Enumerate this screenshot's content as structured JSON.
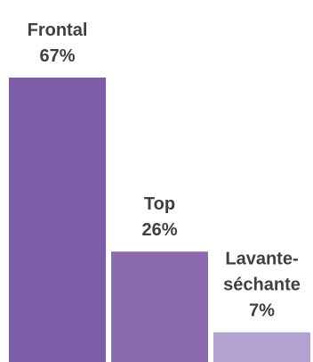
{
  "chart_data": {
    "type": "bar",
    "title": "",
    "xlabel": "",
    "ylabel": "",
    "ylim": [
      0,
      67
    ],
    "grid": false,
    "legend": "none",
    "unit": "%",
    "categories": [
      {
        "label_lines": [
          "Frontal"
        ],
        "value_text": "67%",
        "value": 67,
        "color": "#7b5ea7"
      },
      {
        "label_lines": [
          "Top"
        ],
        "value_text": "26%",
        "value": 26,
        "color": "#8a6cae"
      },
      {
        "label_lines": [
          "Lavante-",
          "séchante"
        ],
        "value_text": "7%",
        "value": 7,
        "color": "#b3a2cf"
      }
    ]
  }
}
